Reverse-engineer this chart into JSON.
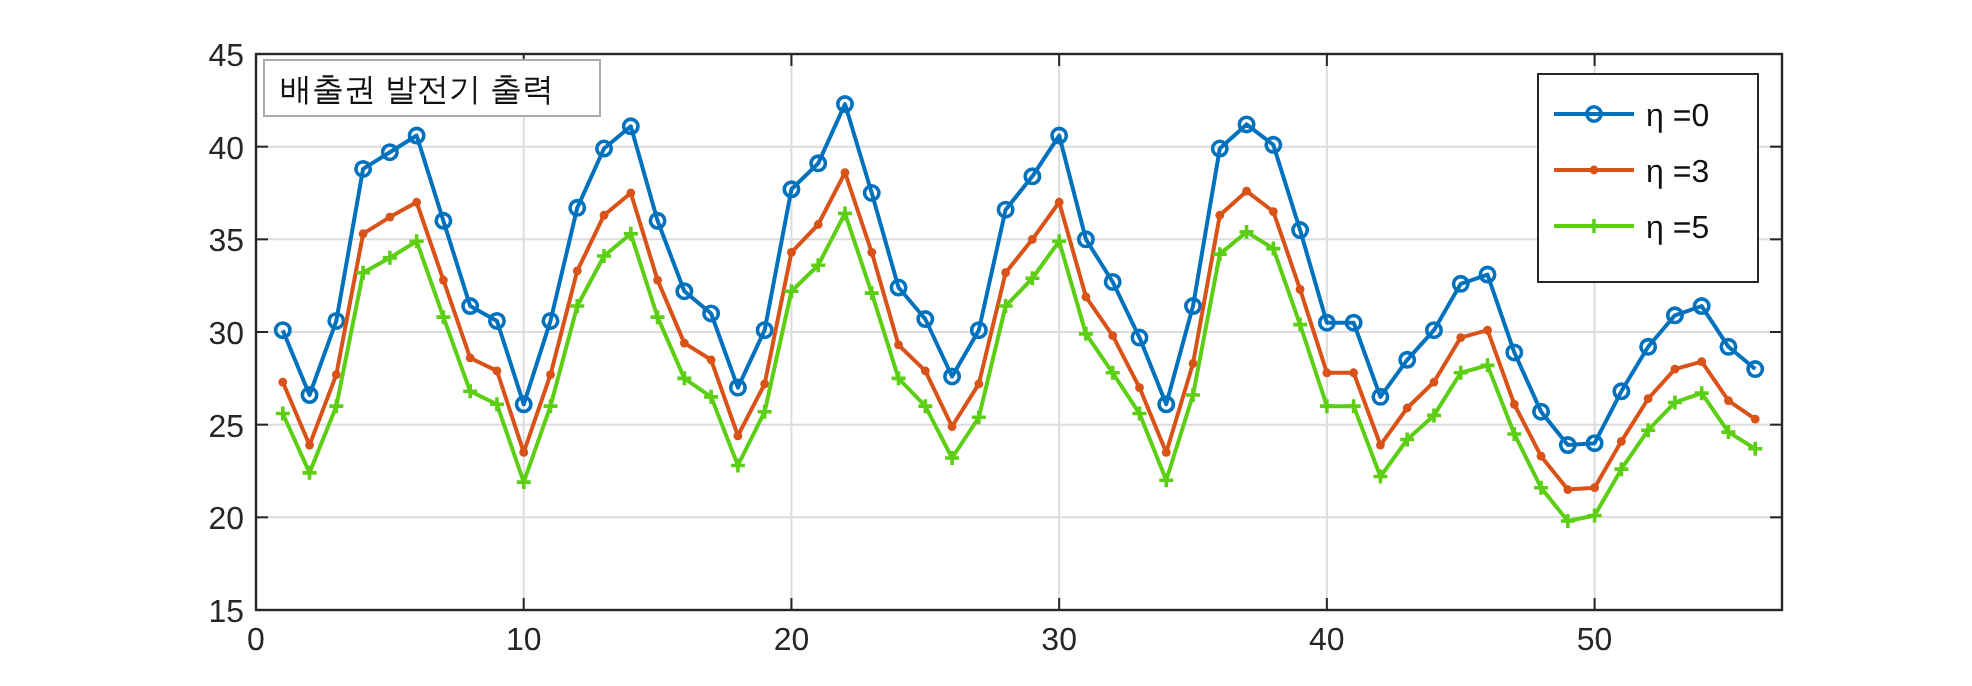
{
  "chart_data": {
    "type": "line",
    "annotations": [
      "배출권 발전기 출력"
    ],
    "x": [
      1,
      2,
      3,
      4,
      5,
      6,
      7,
      8,
      9,
      10,
      11,
      12,
      13,
      14,
      15,
      16,
      17,
      18,
      19,
      20,
      21,
      22,
      23,
      24,
      25,
      26,
      27,
      28,
      29,
      30,
      31,
      32,
      33,
      34,
      35,
      36,
      37,
      38,
      39,
      40,
      41,
      42,
      43,
      44,
      45,
      46,
      47,
      48,
      49,
      50,
      51,
      52,
      53,
      54,
      55,
      56
    ],
    "series": [
      {
        "name": "η =0",
        "color": "#0072bd",
        "marker": "circle",
        "values": [
          30.1,
          26.6,
          30.6,
          38.8,
          39.7,
          40.6,
          36.0,
          31.4,
          30.6,
          26.1,
          30.6,
          36.7,
          39.9,
          41.1,
          36.0,
          32.2,
          31.0,
          27.0,
          30.1,
          37.7,
          39.1,
          42.3,
          37.5,
          32.4,
          30.7,
          27.6,
          30.1,
          36.6,
          38.4,
          40.6,
          35.0,
          32.7,
          29.7,
          26.1,
          31.4,
          39.9,
          41.2,
          40.1,
          35.5,
          30.5,
          30.5,
          26.5,
          28.5,
          30.1,
          32.6,
          33.1,
          28.9,
          25.7,
          23.9,
          24.0,
          26.8,
          29.2,
          30.9,
          31.4,
          29.2,
          28.0
        ]
      },
      {
        "name": "η =3",
        "color": "#d95319",
        "marker": "point",
        "values": [
          27.3,
          23.9,
          27.7,
          35.3,
          36.2,
          37.0,
          32.8,
          28.6,
          27.9,
          23.5,
          27.7,
          33.3,
          36.3,
          37.5,
          32.8,
          29.4,
          28.5,
          24.4,
          27.2,
          34.3,
          35.8,
          38.6,
          34.3,
          29.3,
          27.9,
          24.9,
          27.2,
          33.2,
          35.0,
          37.0,
          31.9,
          29.8,
          27.0,
          23.5,
          28.3,
          36.3,
          37.6,
          36.5,
          32.3,
          27.8,
          27.8,
          23.9,
          25.9,
          27.3,
          29.7,
          30.1,
          26.1,
          23.3,
          21.5,
          21.6,
          24.1,
          26.4,
          28.0,
          28.4,
          26.3,
          25.3
        ]
      },
      {
        "name": "η =5",
        "color": "#5ccf14",
        "marker": "cross",
        "values": [
          25.6,
          22.4,
          26.0,
          33.2,
          34.0,
          34.9,
          30.8,
          26.8,
          26.1,
          21.9,
          26.0,
          31.4,
          34.1,
          35.3,
          30.8,
          27.5,
          26.5,
          22.8,
          25.7,
          32.2,
          33.6,
          36.4,
          32.1,
          27.5,
          26.0,
          23.2,
          25.4,
          31.4,
          32.9,
          34.9,
          29.9,
          27.8,
          25.6,
          22.0,
          26.6,
          34.2,
          35.4,
          34.5,
          30.4,
          26.0,
          26.0,
          22.2,
          24.2,
          25.5,
          27.8,
          28.2,
          24.5,
          21.6,
          19.8,
          20.1,
          22.6,
          24.7,
          26.2,
          26.7,
          24.6,
          23.7
        ]
      }
    ],
    "xlim": [
      0,
      57
    ],
    "xticks": [
      0,
      10,
      20,
      30,
      40,
      50
    ],
    "ylim": [
      15,
      45
    ],
    "yticks": [
      15,
      20,
      25,
      30,
      35,
      40,
      45
    ],
    "grid": true,
    "legend": "top right"
  }
}
